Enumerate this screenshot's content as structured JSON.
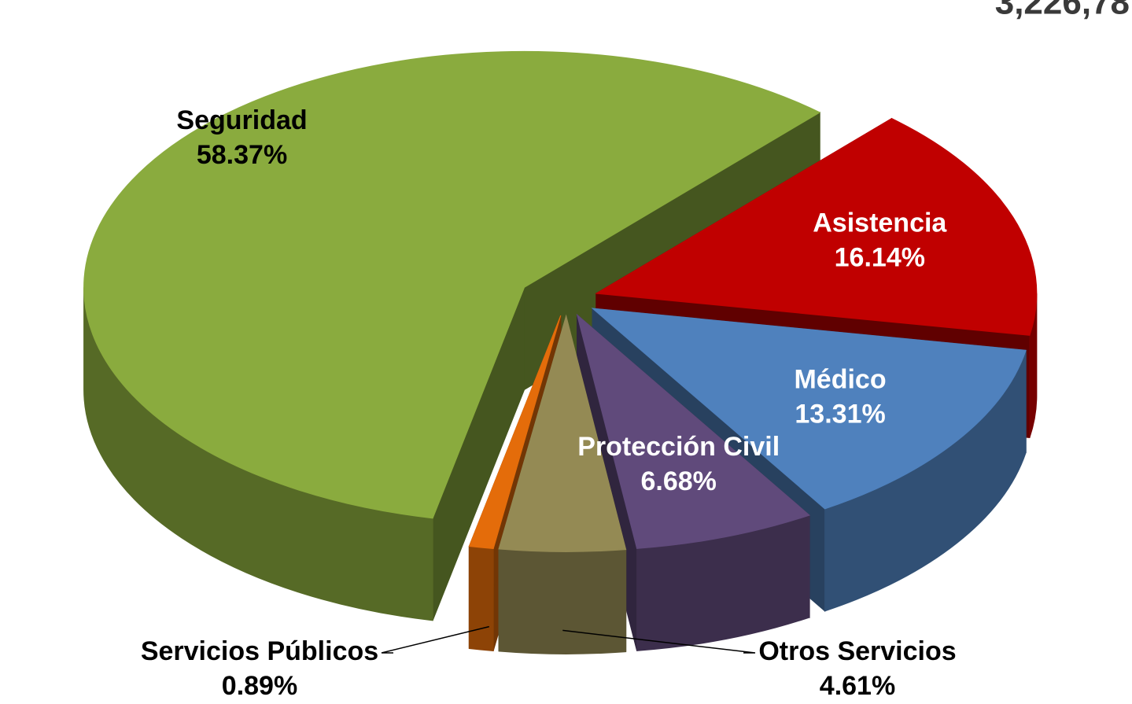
{
  "chart_data": {
    "type": "pie3d",
    "annotation": "3,226,78",
    "categories": [
      "Seguridad",
      "Asistencia",
      "Médico",
      "Protección Civil",
      "Otros Servicios",
      "Servicios Públicos"
    ],
    "values": [
      58.37,
      16.14,
      13.31,
      6.68,
      4.61,
      0.89
    ],
    "value_labels": [
      "58.37%",
      "16.14%",
      "13.31%",
      "6.68%",
      "4.61%",
      "0.89%"
    ],
    "colors": [
      "#8aab3e",
      "#c00000",
      "#4f81bd",
      "#604a7b",
      "#948a54",
      "#e46c0a"
    ]
  }
}
